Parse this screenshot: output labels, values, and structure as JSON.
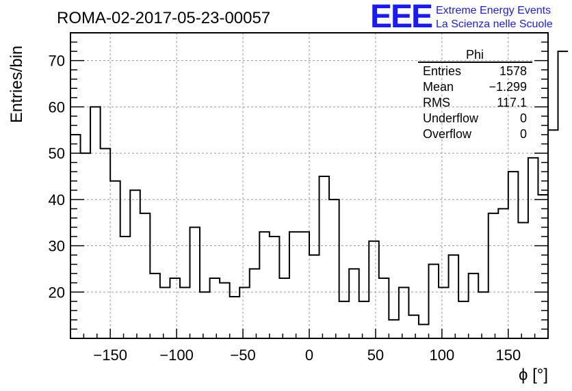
{
  "logo": {
    "mark": "EEE",
    "line1": "Extreme Energy Events",
    "line2": "La Scienza nelle Scuole",
    "color": "#1a1aff"
  },
  "stats_box": {
    "title": "Phi",
    "rows": [
      {
        "label": "Entries",
        "value": "1578"
      },
      {
        "label": "Mean",
        "value": "−1.299"
      },
      {
        "label": "RMS",
        "value": "117.1"
      },
      {
        "label": "Underflow",
        "value": "0"
      },
      {
        "label": "Overflow",
        "value": "0"
      }
    ]
  },
  "chart_data": {
    "type": "histogram",
    "title": "ROMA-02-2017-05-23-00057",
    "xlabel": "ϕ [°]",
    "ylabel": "Entries/bin",
    "xlim": [
      -180,
      180
    ],
    "ylim": [
      10,
      76
    ],
    "xticks": [
      -150,
      -100,
      -50,
      0,
      50,
      100,
      150
    ],
    "xtick_labels": [
      "−150",
      "−100",
      "−50",
      "0",
      "50",
      "100",
      "150"
    ],
    "yticks": [
      20,
      30,
      40,
      50,
      60,
      70
    ],
    "grid": true,
    "line_color": "#000000",
    "bin_width": 7.5,
    "bin_edges_start": -180,
    "values": [
      54,
      50,
      60,
      51,
      44,
      32,
      42,
      37,
      24,
      21,
      23,
      21,
      34,
      20,
      23,
      22,
      19,
      21,
      25,
      33,
      32,
      23,
      33,
      33,
      28,
      45,
      40,
      18,
      25,
      18,
      31,
      23,
      14,
      21,
      15,
      13,
      26,
      21,
      28,
      18,
      24,
      20,
      37,
      38,
      46,
      35,
      49,
      41,
      55,
      72
    ]
  }
}
